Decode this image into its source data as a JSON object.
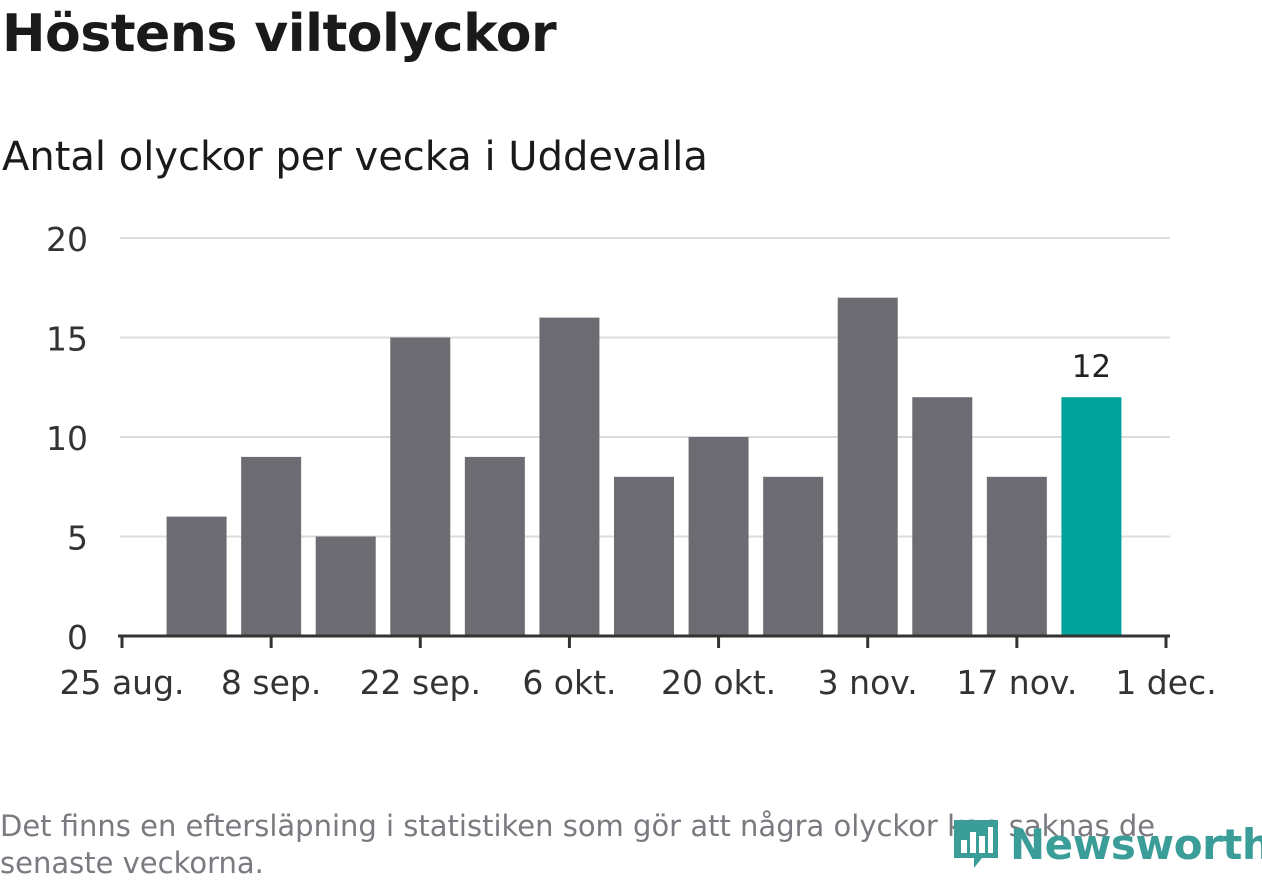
{
  "title": "Höstens viltolyckor",
  "subtitle": "Antal olyckor per vecka i Uddevalla",
  "note": "Det finns en eftersläpning i statistiken som gör att några olyckor kan saknas de senaste veckorna.",
  "logo": {
    "text": "Newsworthy",
    "icon": "bar-chart-icon",
    "color": "#3a9d98"
  },
  "chart_data": {
    "type": "bar",
    "x_ticks": [
      "25 aug.",
      "8 sep.",
      "22 sep.",
      "6 okt.",
      "20 okt.",
      "3 nov.",
      "17 nov.",
      "1 dec."
    ],
    "y_ticks": [
      "0",
      "5",
      "10",
      "15",
      "20"
    ],
    "ylim": [
      0,
      20
    ],
    "grid": true,
    "values": [
      6,
      9,
      5,
      15,
      9,
      16,
      8,
      10,
      8,
      17,
      12,
      8,
      12
    ],
    "bar_color": "#6d6c72",
    "highlight_color": "#00a39a",
    "highlight_index": 12,
    "highlight_label": "12"
  }
}
